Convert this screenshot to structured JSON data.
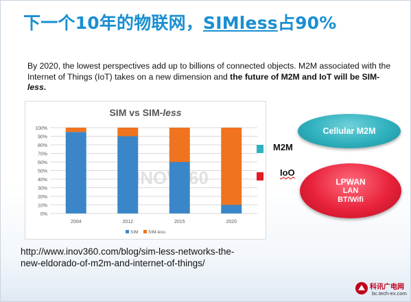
{
  "slide": {
    "title_prefix": "下一个10年的物联网，",
    "title_emph": "SIMless",
    "title_suffix": "占90%",
    "para_plain1": "By 2020,  the lowest perspectives add up to billions of connected objects. M2M associated with the Internet of Things (IoT) takes on a new dimension and ",
    "para_bold1": "the future of M2M and IoT will be SIM-",
    "para_bold_italic": "less",
    "para_end": ".",
    "url": "http://www.inov360.com/blog/sim-less-networks-the-new-eldorado-of-m2m-and-internet-of-things/"
  },
  "chart_data": {
    "type": "bar",
    "stacked": true,
    "title_main": "SIM vs SIM-",
    "title_italic": "less",
    "categories": [
      "2004",
      "2012",
      "2015",
      "2020"
    ],
    "series": [
      {
        "name": "SIM",
        "values": [
          95,
          90,
          60,
          10
        ]
      },
      {
        "name": "SIM-less",
        "values": [
          5,
          10,
          40,
          90
        ]
      }
    ],
    "ylim": [
      0,
      100
    ],
    "yticks": [
      "0%",
      "10%",
      "20%",
      "30%",
      "40%",
      "50%",
      "60%",
      "70%",
      "80%",
      "90%",
      "100%"
    ],
    "grid": true,
    "legend_position": "bottom",
    "watermark": "INOV360"
  },
  "colors": {
    "title": "#1a8fd1",
    "sim": "#3a86c8",
    "simless": "#f0731f",
    "m2m_box": "#2eb2c0",
    "ioo_box": "#e31b23"
  },
  "side": {
    "m2m_label": "M2M",
    "ioo_label": "IoO",
    "cellular": "Cellular M2M",
    "lpwan": "LPWAN",
    "lan": "LAN",
    "bt": "BT/Wifi"
  },
  "logo": {
    "name": "科讯广电网",
    "domain": "bc.tech-ex.com"
  }
}
